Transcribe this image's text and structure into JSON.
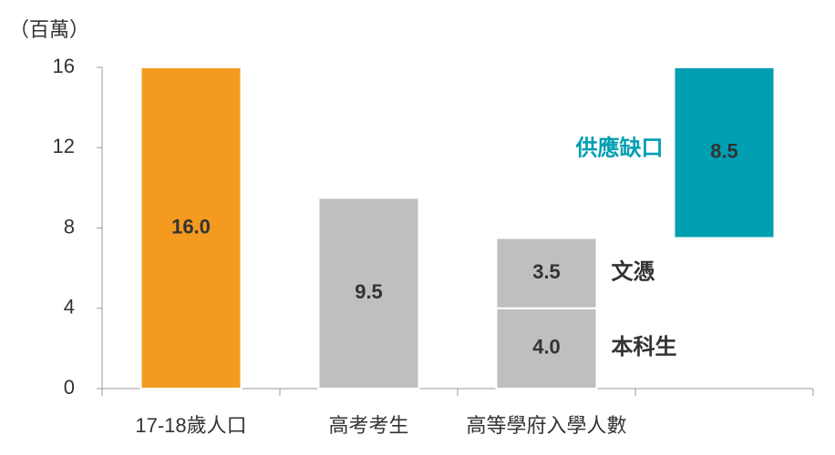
{
  "chart_data": {
    "type": "bar",
    "stacked": true,
    "ylabel": "（百萬）",
    "categories": [
      "17-18歲人口",
      "高考考生",
      "高等學府入學人數",
      null
    ],
    "series": [
      {
        "colors": [
          "#f39a1f",
          "#bfbfbf",
          null,
          null
        ],
        "values": [
          16.0,
          9.5,
          null,
          null
        ],
        "value_labels": [
          "16.0",
          "9.5",
          null,
          null
        ]
      },
      {
        "name": "本科生",
        "color": "#bfbfbf",
        "values": [
          null,
          null,
          4.0,
          null
        ],
        "value_labels": [
          null,
          null,
          "4.0",
          null
        ]
      },
      {
        "name": "文憑",
        "color": "#bfbfbf",
        "values": [
          null,
          null,
          3.5,
          null
        ],
        "value_labels": [
          null,
          null,
          "3.5",
          null
        ]
      },
      {
        "name": "供應缺口",
        "color": "#009fb2",
        "values": [
          null,
          null,
          null,
          8.5
        ],
        "value_labels": [
          null,
          null,
          null,
          "8.5"
        ]
      }
    ],
    "ylim": [
      0,
      16
    ],
    "yticks": [
      0,
      4,
      8,
      12,
      16
    ]
  }
}
